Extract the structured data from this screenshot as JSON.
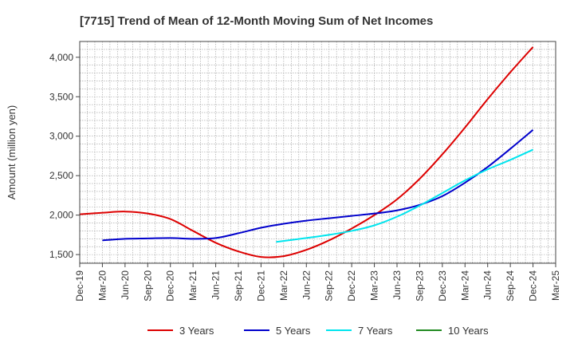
{
  "chart_data": {
    "type": "line",
    "title": "[7715]  Trend of Mean of 12-Month Moving Sum of Net Incomes",
    "xlabel": "",
    "ylabel": "Amount (million yen)",
    "x_ticks": [
      "Dec-19",
      "Mar-20",
      "Jun-20",
      "Sep-20",
      "Dec-20",
      "Mar-21",
      "Jun-21",
      "Sep-21",
      "Dec-21",
      "Mar-22",
      "Jun-22",
      "Sep-22",
      "Dec-22",
      "Mar-23",
      "Jun-23",
      "Sep-23",
      "Dec-23",
      "Mar-24",
      "Jun-24",
      "Sep-24",
      "Dec-24",
      "Mar-25"
    ],
    "y_ticks": [
      1500,
      2000,
      2500,
      3000,
      3500,
      4000
    ],
    "y_tick_labels": [
      "1,500",
      "2,000",
      "2,500",
      "3,000",
      "3,500",
      "4,000"
    ],
    "ylim": [
      1390,
      4200
    ],
    "grid": true,
    "legend_position": "bottom",
    "series": [
      {
        "name": "3 Years",
        "color": "#dd0000",
        "x": [
          "Dec-19",
          "Mar-20",
          "Jun-20",
          "Sep-20",
          "Dec-20",
          "Mar-21",
          "Jun-21",
          "Sep-21",
          "Dec-21",
          "Mar-22",
          "Jun-22",
          "Sep-22",
          "Dec-22",
          "Mar-23",
          "Jun-23",
          "Sep-23",
          "Dec-23",
          "Mar-24",
          "Jun-24",
          "Sep-24",
          "Dec-24"
        ],
        "values": [
          2010,
          2030,
          2045,
          2020,
          1950,
          1800,
          1650,
          1540,
          1470,
          1480,
          1560,
          1680,
          1830,
          2000,
          2200,
          2460,
          2770,
          3110,
          3470,
          3810,
          4130
        ]
      },
      {
        "name": "5 Years",
        "color": "#0000cc",
        "x": [
          "Mar-20",
          "Jun-20",
          "Sep-20",
          "Dec-20",
          "Mar-21",
          "Jun-21",
          "Sep-21",
          "Dec-21",
          "Mar-22",
          "Jun-22",
          "Sep-22",
          "Dec-22",
          "Mar-23",
          "Jun-23",
          "Sep-23",
          "Dec-23",
          "Mar-24",
          "Jun-24",
          "Sep-24",
          "Dec-24"
        ],
        "values": [
          1680,
          1700,
          1705,
          1710,
          1700,
          1710,
          1770,
          1840,
          1890,
          1930,
          1960,
          1990,
          2020,
          2060,
          2130,
          2240,
          2410,
          2610,
          2840,
          3080
        ]
      },
      {
        "name": "7 Years",
        "color": "#00e5ee",
        "x": [
          "Feb-22",
          "Jun-22",
          "Sep-22",
          "Dec-22",
          "Mar-23",
          "Jun-23",
          "Sep-23",
          "Dec-23",
          "Mar-24",
          "Jun-24",
          "Sep-24",
          "Dec-24"
        ],
        "values": [
          1660,
          1710,
          1750,
          1800,
          1870,
          1980,
          2120,
          2280,
          2440,
          2580,
          2700,
          2830
        ]
      },
      {
        "name": "10 Years",
        "color": "#228b22",
        "x": [],
        "values": []
      }
    ]
  }
}
